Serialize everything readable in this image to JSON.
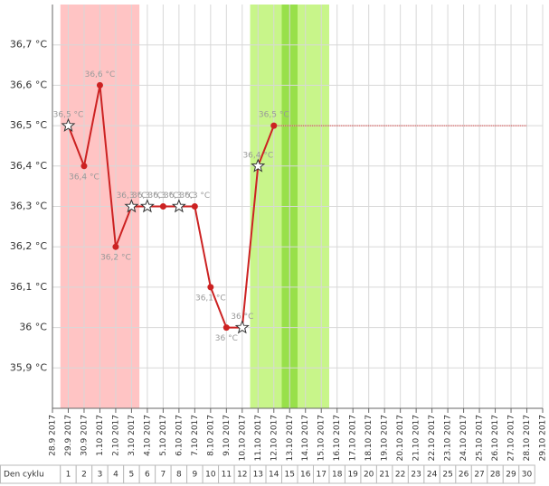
{
  "chart_data": {
    "type": "line",
    "x": [
      "28.9 2017",
      "29.9 2017",
      "30.9 2017",
      "1.10 2017",
      "2.10 2017",
      "3.10 2017",
      "4.10 2017",
      "5.10 2017",
      "6.10 2017",
      "7.10 2017",
      "8.10 2017",
      "9.10 2017",
      "10.10 2017",
      "11.10 2017",
      "12.10 2017",
      "13.10 2017",
      "14.10 2017",
      "15.10 2017",
      "16.10 2017",
      "17.10 2017",
      "18.10 2017",
      "19.10 2017",
      "20.10 2017",
      "21.10 2017",
      "22.10 2017",
      "23.10 2017",
      "24.10 2017",
      "25.10 2017",
      "26.10 2017",
      "27.10 2017",
      "28.10 2017",
      "29.10 2017"
    ],
    "series": [
      {
        "color": "#cc2222",
        "values": [
          null,
          36.5,
          36.4,
          36.6,
          36.2,
          36.3,
          36.3,
          36.3,
          36.3,
          36.3,
          36.1,
          36.0,
          36.0,
          36.4,
          36.5,
          null,
          null,
          null,
          null,
          null,
          null,
          null,
          null,
          null,
          null,
          null,
          null,
          null,
          null,
          null,
          null,
          null
        ],
        "value_labels": [
          null,
          "36,5 °C",
          "36,4 °C",
          "36,6 °C",
          "36,2 °C",
          "36,3 °C",
          "36,3 °C",
          "36,3 °C",
          "36,3 °C",
          "36,3 °C",
          "36,1 °C",
          "36 °C",
          "36 °C",
          "36,4 °C",
          "36,5 °C",
          null,
          null,
          null,
          null,
          null,
          null,
          null,
          null,
          null,
          null,
          null,
          null,
          null,
          null,
          null,
          null,
          null
        ],
        "markers": [
          null,
          "star",
          "circle",
          "circle",
          "circle",
          "star",
          "star",
          "circle",
          "star",
          "circle",
          "circle",
          "circle",
          "star",
          "star",
          "circle",
          null,
          null,
          null,
          null,
          null,
          null,
          null,
          null,
          null,
          null,
          null,
          null,
          null,
          null,
          null,
          null,
          null
        ]
      }
    ],
    "projection": {
      "color": "#cc2222",
      "values": [
        null,
        null,
        null,
        null,
        null,
        null,
        null,
        null,
        null,
        null,
        null,
        null,
        null,
        null,
        36.5,
        36.5,
        36.5,
        36.5,
        36.5,
        36.5,
        36.5,
        36.5,
        36.5,
        36.5,
        36.5,
        36.5,
        36.5,
        36.5,
        36.5,
        36.5,
        36.5,
        null
      ]
    },
    "bands": [
      {
        "from": 1,
        "to": 5,
        "color": "#ffc4c4"
      },
      {
        "from": 13,
        "to": 17,
        "color": "#c8f58a"
      },
      {
        "from": 15,
        "to": 15,
        "color": "#98e04a"
      }
    ],
    "ylim": [
      35.8,
      36.8
    ],
    "yticks": [
      {
        "value": 35.9,
        "label": "35,9 °C"
      },
      {
        "value": 36.0,
        "label": "36 °C"
      },
      {
        "value": 36.1,
        "label": "36,1 °C"
      },
      {
        "value": 36.2,
        "label": "36,2 °C"
      },
      {
        "value": 36.3,
        "label": "36,3 °C"
      },
      {
        "value": 36.4,
        "label": "36,4 °C"
      },
      {
        "value": 36.5,
        "label": "36,5 °C"
      },
      {
        "value": 36.6,
        "label": "36,6 °C"
      },
      {
        "value": 36.7,
        "label": "36,7 °C"
      }
    ],
    "grid": true,
    "cycle_row": {
      "label": "Den cyklu",
      "days": [
        1,
        2,
        3,
        4,
        5,
        6,
        7,
        8,
        9,
        10,
        11,
        12,
        13,
        14,
        15,
        16,
        17,
        18,
        19,
        20,
        21,
        22,
        23,
        24,
        25,
        26,
        27,
        28,
        29,
        30
      ]
    }
  }
}
